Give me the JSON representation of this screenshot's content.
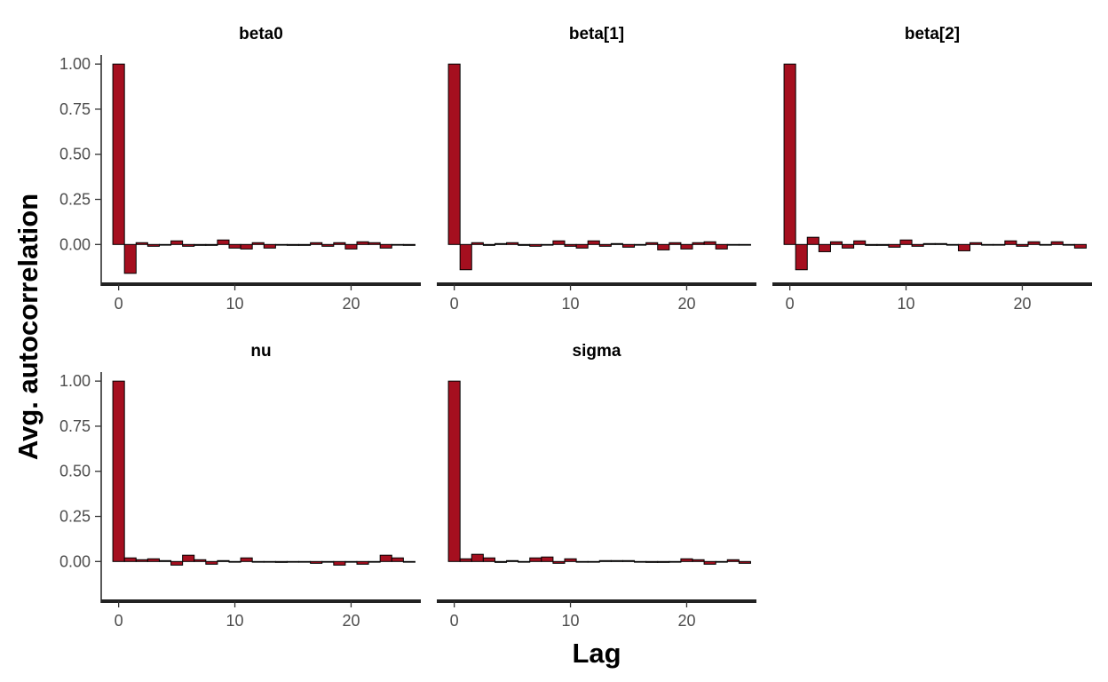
{
  "chart_data": {
    "type": "bar",
    "xlabel": "Lag",
    "ylabel": "Avg.  autocorrelation",
    "ylim": [
      -0.22,
      1.05
    ],
    "xlim": [
      -1.5,
      26
    ],
    "y_ticks": [
      "1.00",
      "0.75",
      "0.50",
      "0.25",
      "0.00"
    ],
    "x_ticks": [
      "0",
      "10",
      "20"
    ],
    "bar_color": "#A50F1F",
    "bar_outline": "#000000",
    "grid": false,
    "panels": [
      {
        "title": "beta0",
        "x": [
          0,
          1,
          2,
          3,
          4,
          5,
          6,
          7,
          8,
          9,
          10,
          11,
          12,
          13,
          14,
          15,
          16,
          17,
          18,
          19,
          20,
          21,
          22,
          23,
          24,
          25
        ],
        "values": [
          1.0,
          -0.16,
          0.01,
          -0.01,
          0.0,
          0.02,
          -0.01,
          -0.005,
          -0.005,
          0.025,
          -0.02,
          -0.025,
          0.01,
          -0.02,
          0.0,
          -0.005,
          -0.005,
          0.01,
          -0.01,
          0.01,
          -0.025,
          0.015,
          0.01,
          -0.02,
          0.0,
          -0.005
        ]
      },
      {
        "title": "beta[1]",
        "x": [
          0,
          1,
          2,
          3,
          4,
          5,
          6,
          7,
          8,
          9,
          10,
          11,
          12,
          13,
          14,
          15,
          16,
          17,
          18,
          19,
          20,
          21,
          22,
          23,
          24,
          25
        ],
        "values": [
          1.0,
          -0.14,
          0.01,
          -0.005,
          0.005,
          0.01,
          -0.005,
          -0.01,
          0.0,
          0.02,
          -0.01,
          -0.02,
          0.02,
          -0.01,
          0.005,
          -0.015,
          0.0,
          0.01,
          -0.03,
          0.01,
          -0.025,
          0.01,
          0.015,
          -0.025,
          0.0,
          0.0
        ]
      },
      {
        "title": "beta[2]",
        "x": [
          0,
          1,
          2,
          3,
          4,
          5,
          6,
          7,
          8,
          9,
          10,
          11,
          12,
          13,
          14,
          15,
          16,
          17,
          18,
          19,
          20,
          21,
          22,
          23,
          24,
          25
        ],
        "values": [
          1.0,
          -0.14,
          0.04,
          -0.04,
          0.015,
          -0.02,
          0.02,
          -0.005,
          -0.005,
          -0.015,
          0.025,
          -0.01,
          0.005,
          0.005,
          0.0,
          -0.035,
          0.01,
          0.0,
          0.0,
          0.02,
          -0.01,
          0.015,
          0.0,
          0.015,
          0.0,
          -0.02
        ]
      },
      {
        "title": "nu",
        "x": [
          0,
          1,
          2,
          3,
          4,
          5,
          6,
          7,
          8,
          9,
          10,
          11,
          12,
          13,
          14,
          15,
          16,
          17,
          18,
          19,
          20,
          21,
          22,
          23,
          24,
          25
        ],
        "values": [
          1.0,
          0.02,
          0.01,
          0.015,
          0.005,
          -0.02,
          0.035,
          0.01,
          -0.015,
          0.005,
          0.0,
          0.02,
          0.0,
          0.0,
          -0.005,
          0.0,
          0.0,
          -0.01,
          0.0,
          -0.02,
          0.0,
          -0.015,
          0.0,
          0.035,
          0.02,
          0.0
        ]
      },
      {
        "title": "sigma",
        "x": [
          0,
          1,
          2,
          3,
          4,
          5,
          6,
          7,
          8,
          9,
          10,
          11,
          12,
          13,
          14,
          15,
          16,
          17,
          18,
          19,
          20,
          21,
          22,
          23,
          24,
          25
        ],
        "values": [
          1.0,
          0.015,
          0.04,
          0.02,
          -0.005,
          0.005,
          0.0,
          0.02,
          0.025,
          -0.01,
          0.015,
          0.0,
          0.0,
          0.005,
          0.005,
          0.005,
          0.0,
          -0.005,
          -0.005,
          0.0,
          0.015,
          0.01,
          -0.015,
          0.0,
          0.01,
          -0.01
        ]
      }
    ]
  }
}
